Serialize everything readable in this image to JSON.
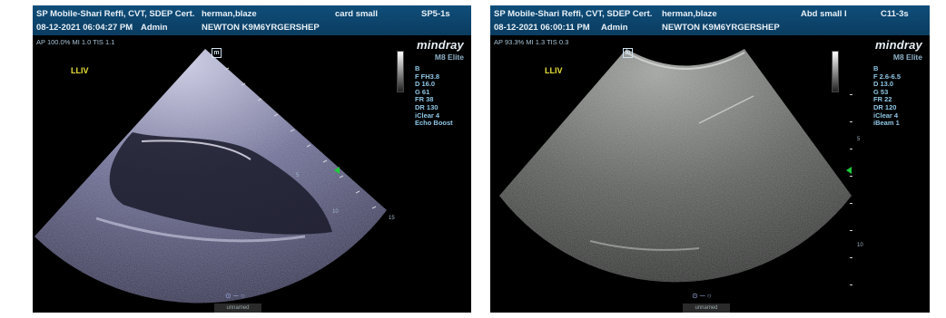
{
  "left_panel": {
    "header": {
      "operator": "SP Mobile-Shari Reffi, CVT, SDEP Cert.",
      "patient": "herman,blaze",
      "preset": "card small",
      "probe": "SP5-1s",
      "datetime": "08-12-2021 06:04:27 PM",
      "user": "Admin",
      "patient_id": "NEWTON K9M6YRGERSHEP"
    },
    "acoustic": "AP 100.0%  MI 1.0  TIS 1.1",
    "brand": "mindray",
    "model": "M8 Elite",
    "settings": [
      "B",
      "F FH3.8",
      "D 16.0",
      "G 61",
      "FR 38",
      "DR 130",
      "iClear 4",
      "Echo Boost"
    ],
    "label": "LLIV",
    "depth_marks": [
      "5",
      "10",
      "15"
    ],
    "footer": "unnamed",
    "tint": "#8f8fb5"
  },
  "right_panel": {
    "header": {
      "operator": "SP Mobile-Shari Reffi, CVT, SDEP Cert.",
      "patient": "herman,blaze",
      "preset": "Abd small I",
      "probe": "C11-3s",
      "datetime": "08-12-2021 06:00:11 PM",
      "user": "Admin",
      "patient_id": "NEWTON K9M6YRGERSHEP"
    },
    "acoustic": "AP 93.3%  MI 1.3  TIS 0.3",
    "brand": "mindray",
    "model": "M8 Elite",
    "settings": [
      "B",
      "F 2.6-6.5",
      "D 13.0",
      "G 53",
      "FR 22",
      "DR 120",
      "iClear 4",
      "iBeam 1"
    ],
    "label": "LLIV",
    "depth_marks": [
      "5",
      "10"
    ],
    "footer": "unnamed",
    "tint": "#a8aaa8"
  }
}
